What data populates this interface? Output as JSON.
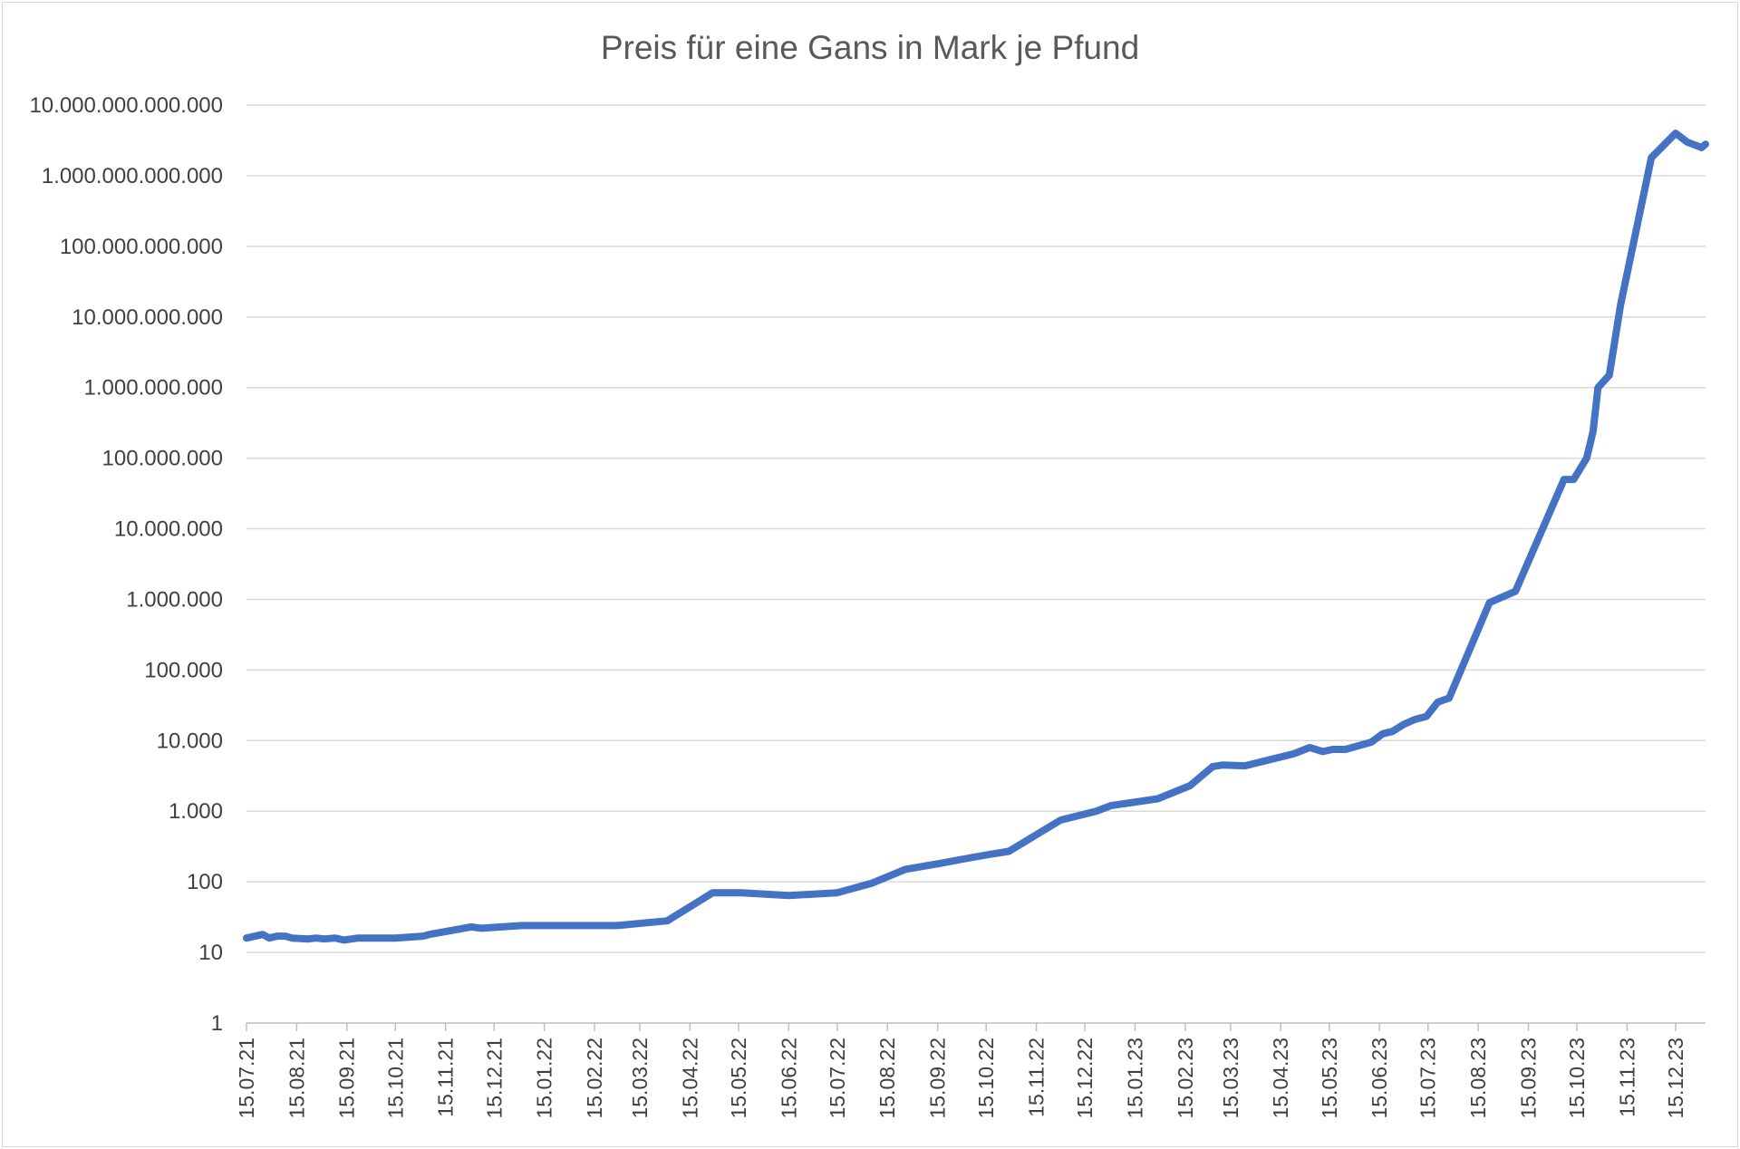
{
  "chart_data": {
    "type": "line",
    "title": "Preis für eine Gans in Mark je Pfund",
    "xlabel": "",
    "ylabel": "",
    "y_scale": "log",
    "ylim": [
      1,
      10000000000000
    ],
    "xlim": [
      "2021-07-15",
      "2023-12-31"
    ],
    "grid": true,
    "legend": "none",
    "y_ticks": [
      1,
      10,
      100,
      1000,
      10000,
      100000,
      1000000,
      10000000,
      100000000,
      1000000000,
      10000000000,
      100000000000,
      1000000000000,
      10000000000000
    ],
    "y_tick_labels": [
      "1",
      "10",
      "100",
      "1.000",
      "10.000",
      "100.000",
      "1.000.000",
      "10.000.000",
      "100.000.000",
      "1.000.000.000",
      "10.000.000.000",
      "100.000.000.000",
      "1.000.000.000.000",
      "10.000.000.000.000"
    ],
    "x_tick_labels": [
      "15.07.21",
      "15.08.21",
      "15.09.21",
      "15.10.21",
      "15.11.21",
      "15.12.21",
      "15.01.22",
      "15.02.22",
      "15.03.22",
      "15.04.22",
      "15.05.22",
      "15.06.22",
      "15.07.22",
      "15.08.22",
      "15.09.22",
      "15.10.22",
      "15.11.22",
      "15.12.22",
      "15.01.23",
      "15.02.23",
      "15.03.23",
      "15.04.23",
      "15.05.23",
      "15.06.23",
      "15.07.23",
      "15.08.23",
      "15.09.23",
      "15.10.23",
      "15.11.23",
      "15.12.23"
    ],
    "series": [
      {
        "color": "#4472c4",
        "points": [
          [
            "2021-07-15",
            16
          ],
          [
            "2021-07-25",
            18
          ],
          [
            "2021-07-29",
            16
          ],
          [
            "2021-08-03",
            17
          ],
          [
            "2021-08-08",
            17
          ],
          [
            "2021-08-12",
            16
          ],
          [
            "2021-08-22",
            15.5
          ],
          [
            "2021-08-27",
            16
          ],
          [
            "2021-09-01",
            15.5
          ],
          [
            "2021-09-08",
            16
          ],
          [
            "2021-09-13",
            15
          ],
          [
            "2021-09-22",
            16
          ],
          [
            "2021-10-15",
            16
          ],
          [
            "2021-11-01",
            17
          ],
          [
            "2021-11-05",
            18
          ],
          [
            "2021-12-01",
            23
          ],
          [
            "2021-12-07",
            22
          ],
          [
            "2022-01-01",
            24
          ],
          [
            "2022-03-01",
            24
          ],
          [
            "2022-04-01",
            28
          ],
          [
            "2022-04-29",
            70
          ],
          [
            "2022-05-17",
            70
          ],
          [
            "2022-06-15",
            64
          ],
          [
            "2022-07-15",
            70
          ],
          [
            "2022-08-05",
            95
          ],
          [
            "2022-08-26",
            150
          ],
          [
            "2022-09-15",
            180
          ],
          [
            "2022-10-01",
            210
          ],
          [
            "2022-10-15",
            240
          ],
          [
            "2022-10-29",
            270
          ],
          [
            "2022-11-30",
            750
          ],
          [
            "2022-12-22",
            1000
          ],
          [
            "2022-12-31",
            1200
          ],
          [
            "2023-01-29",
            1500
          ],
          [
            "2023-02-18",
            2300
          ],
          [
            "2023-03-04",
            4300
          ],
          [
            "2023-03-10",
            4500
          ],
          [
            "2023-03-24",
            4400
          ],
          [
            "2023-04-23",
            6500
          ],
          [
            "2023-05-03",
            8000
          ],
          [
            "2023-05-11",
            7000
          ],
          [
            "2023-05-17",
            7500
          ],
          [
            "2023-05-25",
            7500
          ],
          [
            "2023-06-10",
            9500
          ],
          [
            "2023-06-17",
            12500
          ],
          [
            "2023-06-23",
            13500
          ],
          [
            "2023-06-30",
            17000
          ],
          [
            "2023-07-07",
            20000
          ],
          [
            "2023-07-14",
            22000
          ],
          [
            "2023-07-21",
            35000
          ],
          [
            "2023-07-28",
            40000
          ],
          [
            "2023-08-22",
            900000
          ],
          [
            "2023-09-07",
            1300000
          ],
          [
            "2023-10-07",
            50000000
          ],
          [
            "2023-10-13",
            50000000
          ],
          [
            "2023-10-21",
            100000000
          ],
          [
            "2023-10-25",
            240000000
          ],
          [
            "2023-10-28",
            1000000000
          ],
          [
            "2023-11-04",
            1500000000
          ],
          [
            "2023-11-11",
            15000000000
          ],
          [
            "2023-11-30",
            1800000000000
          ],
          [
            "2023-12-15",
            4000000000000
          ],
          [
            "2023-12-22",
            3000000000000
          ],
          [
            "2023-12-31",
            2500000000000
          ],
          [
            "2024-01-22",
            2800000000000
          ]
        ]
      }
    ]
  }
}
